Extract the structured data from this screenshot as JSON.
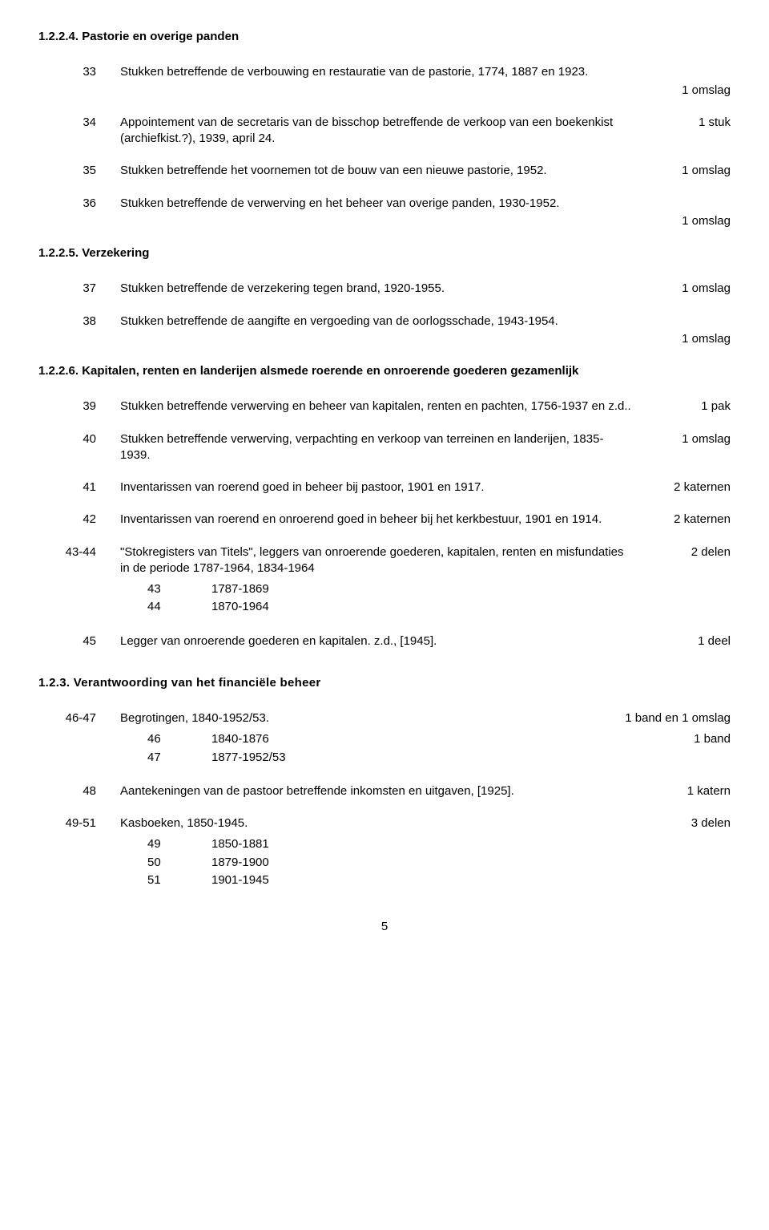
{
  "sections": [
    {
      "heading": "1.2.2.4. Pastorie en overige panden",
      "entries": [
        {
          "ref": "33",
          "desc": "Stukken betreffende de verbouwing en restauratie van de pastorie, 1774, 1887 en 1923.",
          "ext": "1 omslag",
          "extBelow": true
        },
        {
          "ref": "34",
          "desc": "Appointement van de secretaris van de bisschop betreffende de verkoop van een boekenkist (archiefkist.?), 1939, april 24.",
          "ext": "1 stuk"
        },
        {
          "ref": "35",
          "desc": "Stukken betreffende het voornemen tot de bouw van een nieuwe pastorie, 1952.",
          "ext": "1 omslag"
        },
        {
          "ref": "36",
          "desc": "Stukken betreffende de verwerving en het beheer van overige panden, 1930-1952.",
          "ext": "1 omslag",
          "extBelow": true
        }
      ]
    },
    {
      "heading": "1.2.2.5. Verzekering",
      "entries": [
        {
          "ref": "37",
          "desc": "Stukken betreffende de verzekering tegen brand, 1920-1955.",
          "ext": "1 omslag"
        },
        {
          "ref": "38",
          "desc": "Stukken betreffende de aangifte en vergoeding van de oorlogsschade, 1943-1954.",
          "ext": "1 omslag",
          "extBelow": true
        }
      ]
    },
    {
      "heading": "1.2.2.6. Kapitalen, renten en landerijen alsmede roerende en onroerende goederen gezamenlijk",
      "entries": [
        {
          "ref": "39",
          "desc": "Stukken betreffende verwerving en beheer van kapitalen, renten en pachten, 1756-1937 en z.d..",
          "ext": "1 pak"
        },
        {
          "ref": "40",
          "desc": "Stukken betreffende verwerving, verpachting en verkoop van terreinen en landerijen, 1835- 1939.",
          "ext": "1 omslag"
        },
        {
          "ref": "41",
          "desc": "Inventarissen van roerend goed in beheer bij pastoor, 1901 en 1917.",
          "ext": "2 katernen"
        },
        {
          "ref": "42",
          "desc": "Inventarissen van roerend en onroerend goed in beheer bij het kerkbestuur, 1901 en 1914.",
          "ext": "2 katernen"
        },
        {
          "ref": "43-44",
          "desc": "\"Stokregisters van Titels\", leggers van onroerende goederen, kapitalen, renten en misfundaties in de periode 1787-1964, 1834-1964",
          "ext": "2 delen",
          "sub": [
            {
              "ref": "43",
              "text": "1787-1869"
            },
            {
              "ref": "44",
              "text": "1870-1964"
            }
          ]
        },
        {
          "ref": "45",
          "desc": "Legger van onroerende goederen en kapitalen. z.d., [1945].",
          "ext": "1 deel"
        }
      ]
    },
    {
      "heading": "1.2.3. Verantwoording van het financiële beheer",
      "headingClass": "subsection",
      "entries": [
        {
          "ref": "46-47",
          "desc": "Begrotingen, 1840-1952/53.",
          "ext": "1 band en 1 omslag",
          "sub": [
            {
              "ref": "46",
              "text": "1840-1876",
              "ext": "1 band"
            },
            {
              "ref": "47",
              "text": "1877-1952/53"
            }
          ]
        },
        {
          "ref": "48",
          "desc": "Aantekeningen van de pastoor betreffende inkomsten en uitgaven, [1925].",
          "ext": "1 katern"
        },
        {
          "ref": "49-51",
          "desc": "Kasboeken, 1850-1945.",
          "ext": "3 delen",
          "sub": [
            {
              "ref": "49",
              "text": "1850-1881"
            },
            {
              "ref": "50",
              "text": "1879-1900"
            },
            {
              "ref": "51",
              "text": "1901-1945"
            }
          ]
        }
      ]
    }
  ],
  "pageNumber": "5"
}
